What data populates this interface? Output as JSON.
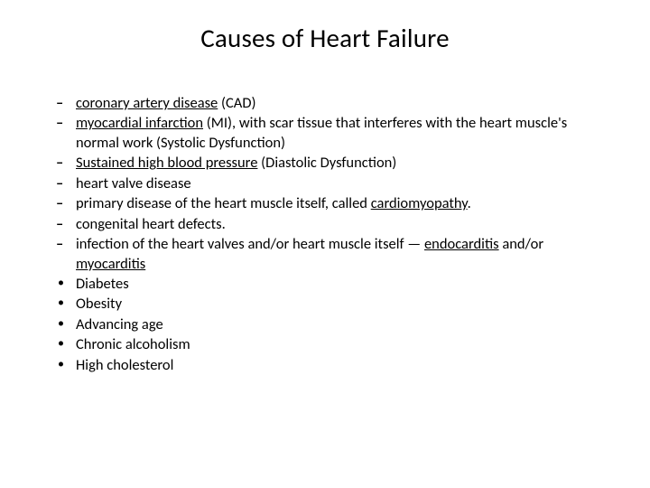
{
  "title": "Causes of Heart Failure",
  "items": [
    {
      "marker": "dash",
      "parts": [
        {
          "text": "coronary artery disease",
          "underline": true
        },
        {
          "text": " (CAD)"
        }
      ]
    },
    {
      "marker": "dash",
      "parts": [
        {
          "text": " "
        },
        {
          "text": "myocardial infarction",
          "underline": true
        },
        {
          "text": " (MI), with scar tissue that interferes with the heart muscle's normal work (Systolic Dysfunction)"
        }
      ]
    },
    {
      "marker": "dash",
      "parts": [
        {
          "text": "Sustained  high blood pressure",
          "underline": true
        },
        {
          "text": " (Diastolic Dysfunction)"
        }
      ]
    },
    {
      "marker": "dash",
      "parts": [
        {
          "text": "heart valve disease"
        }
      ]
    },
    {
      "marker": "dash",
      "parts": [
        {
          "text": "primary disease of the heart muscle itself, called "
        },
        {
          "text": "cardiomyopathy",
          "underline": true
        },
        {
          "text": "."
        }
      ]
    },
    {
      "marker": "dash",
      "parts": [
        {
          "text": "congenital heart defects."
        }
      ]
    },
    {
      "marker": "dash",
      "parts": [
        {
          "text": "infection of the heart valves and/or heart muscle itself — "
        },
        {
          "text": "endocarditis",
          "underline": true
        },
        {
          "text": " and/or "
        },
        {
          "text": "myocarditis",
          "underline": true
        }
      ]
    },
    {
      "marker": "dot",
      "parts": [
        {
          "text": "Diabetes"
        }
      ]
    },
    {
      "marker": "dot",
      "parts": [
        {
          "text": "Obesity"
        }
      ]
    },
    {
      "marker": "dot",
      "parts": [
        {
          "text": "Advancing age"
        }
      ]
    },
    {
      "marker": "dot",
      "parts": [
        {
          "text": "Chronic alcoholism"
        }
      ]
    },
    {
      "marker": "dot",
      "parts": [
        {
          "text": "High cholesterol"
        }
      ]
    }
  ],
  "style": {
    "background_color": "#ffffff",
    "text_color": "#000000",
    "title_fontsize": 29,
    "body_fontsize": 16.5,
    "font_family": "Calibri"
  }
}
